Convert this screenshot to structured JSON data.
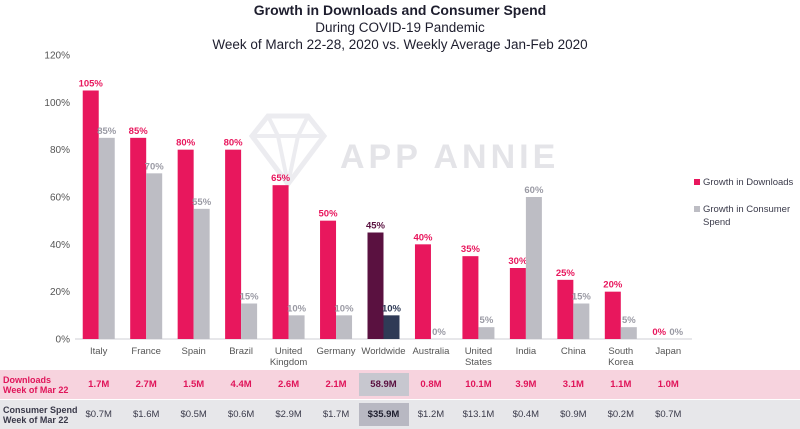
{
  "chart_data": {
    "type": "bar",
    "title": "Growth in Downloads and Consumer Spend",
    "subtitle_1": "During COVID-19 Pandemic",
    "subtitle_2": "Week of March 22-28, 2020 vs. Weekly Average Jan-Feb 2020",
    "categories": [
      "Italy",
      "France",
      "Spain",
      "Brazil",
      "United Kingdom",
      "Germany",
      "Worldwide",
      "Australia",
      "United States",
      "India",
      "China",
      "South Korea",
      "Japan"
    ],
    "series": [
      {
        "name": "Growth in Downloads",
        "color": "#e8175d",
        "highlight_color": "#5a1140",
        "values": [
          105,
          85,
          80,
          80,
          65,
          50,
          45,
          40,
          35,
          30,
          25,
          20,
          0
        ]
      },
      {
        "name": "Growth in Consumer Spend",
        "color": "#bdbdc4",
        "highlight_color": "#2f3a56",
        "values": [
          85,
          70,
          55,
          15,
          10,
          10,
          10,
          0,
          5,
          60,
          15,
          5,
          0
        ]
      }
    ],
    "highlight_category": "Worldwide",
    "y_ticks": [
      "0%",
      "20%",
      "40%",
      "60%",
      "80%",
      "100%",
      "120%"
    ],
    "ylim": [
      0,
      120
    ],
    "xlabel": "",
    "ylabel": "",
    "legend_position": "right"
  },
  "watermark": "APP ANNIE",
  "table": {
    "downloads_label": "Downloads Week of Mar 22",
    "downloads_label_lines": [
      "Downloads",
      "Week of Mar 22"
    ],
    "downloads": [
      "1.7M",
      "2.7M",
      "1.5M",
      "4.4M",
      "2.6M",
      "2.1M",
      "58.9M",
      "0.8M",
      "10.1M",
      "3.9M",
      "3.1M",
      "1.1M",
      "1.0M"
    ],
    "spend_label": "Consumer Spend Week of Mar 22",
    "spend_label_lines": [
      "Consumer Spend",
      "Week of Mar 22"
    ],
    "spend": [
      "$0.7M",
      "$1.6M",
      "$0.5M",
      "$0.6M",
      "$2.9M",
      "$1.7M",
      "$35.9M",
      "$1.2M",
      "$13.1M",
      "$0.4M",
      "$0.9M",
      "$0.2M",
      "$0.7M"
    ]
  }
}
